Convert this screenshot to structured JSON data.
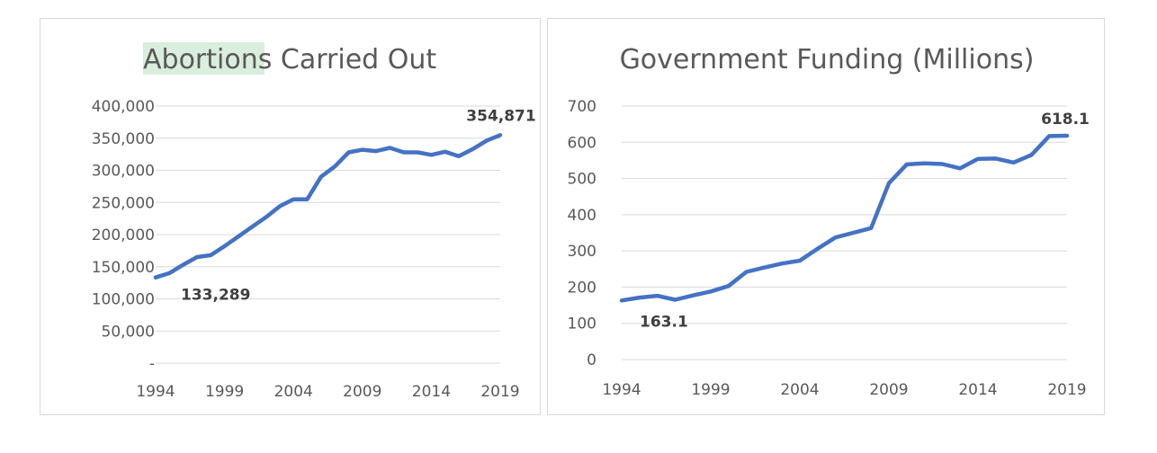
{
  "chart_data": [
    {
      "type": "line",
      "title_highlight": "Abortion",
      "title_rest": "s Carried Out",
      "x": [
        1994,
        1995,
        1996,
        1997,
        1998,
        1999,
        2000,
        2001,
        2002,
        2003,
        2004,
        2005,
        2006,
        2007,
        2008,
        2009,
        2010,
        2011,
        2012,
        2013,
        2014,
        2015,
        2016,
        2017,
        2018,
        2019
      ],
      "series": [
        {
          "values": [
            133289,
            140000,
            153000,
            165000,
            168000,
            182000,
            197000,
            212000,
            227000,
            244000,
            255000,
            255000,
            290000,
            306000,
            328000,
            332000,
            330000,
            335000,
            328000,
            328000,
            324000,
            329000,
            322000,
            333000,
            346000,
            354871
          ]
        }
      ],
      "xticks": [
        "1994",
        "1999",
        "2004",
        "2009",
        "2014",
        "2019"
      ],
      "yticks": [
        {
          "value": 0,
          "label": "-"
        },
        {
          "value": 50000,
          "label": "50,000"
        },
        {
          "value": 100000,
          "label": "100,000"
        },
        {
          "value": 150000,
          "label": "150,000"
        },
        {
          "value": 200000,
          "label": "200,000"
        },
        {
          "value": 250000,
          "label": "250,000"
        },
        {
          "value": 300000,
          "label": "300,000"
        },
        {
          "value": 350000,
          "label": "350,000"
        },
        {
          "value": 400000,
          "label": "400,000"
        }
      ],
      "ylim": [
        0,
        400000
      ],
      "annotations": [
        {
          "label": "133,289",
          "year": 1994
        },
        {
          "label": "354,871",
          "year": 2019
        }
      ],
      "color": "#4472c4",
      "title_highlight_color": "#d9eedd",
      "grid": true,
      "legend": "none"
    },
    {
      "type": "line",
      "title": "Government Funding (Millions)",
      "x": [
        1994,
        1995,
        1996,
        1997,
        1998,
        1999,
        2000,
        2001,
        2002,
        2003,
        2004,
        2005,
        2006,
        2007,
        2008,
        2009,
        2010,
        2011,
        2012,
        2013,
        2014,
        2015,
        2016,
        2017,
        2018,
        2019
      ],
      "series": [
        {
          "values": [
            163.1,
            171,
            176,
            165,
            177,
            188,
            203,
            242,
            254,
            265,
            273,
            306,
            337,
            350,
            363,
            487,
            539,
            542,
            540,
            528,
            554,
            555,
            544,
            565,
            617,
            618.1
          ]
        }
      ],
      "xticks": [
        "1994",
        "1999",
        "2004",
        "2009",
        "2014",
        "2019"
      ],
      "yticks": [
        {
          "value": 0,
          "label": "0"
        },
        {
          "value": 100,
          "label": "100"
        },
        {
          "value": 200,
          "label": "200"
        },
        {
          "value": 300,
          "label": "300"
        },
        {
          "value": 400,
          "label": "400"
        },
        {
          "value": 500,
          "label": "500"
        },
        {
          "value": 600,
          "label": "600"
        },
        {
          "value": 700,
          "label": "700"
        }
      ],
      "ylim": [
        0,
        700
      ],
      "annotations": [
        {
          "label": "163.1",
          "year": 1994
        },
        {
          "label": "618.1",
          "year": 2019
        }
      ],
      "color": "#4472c4",
      "grid": true,
      "legend": "none"
    }
  ]
}
